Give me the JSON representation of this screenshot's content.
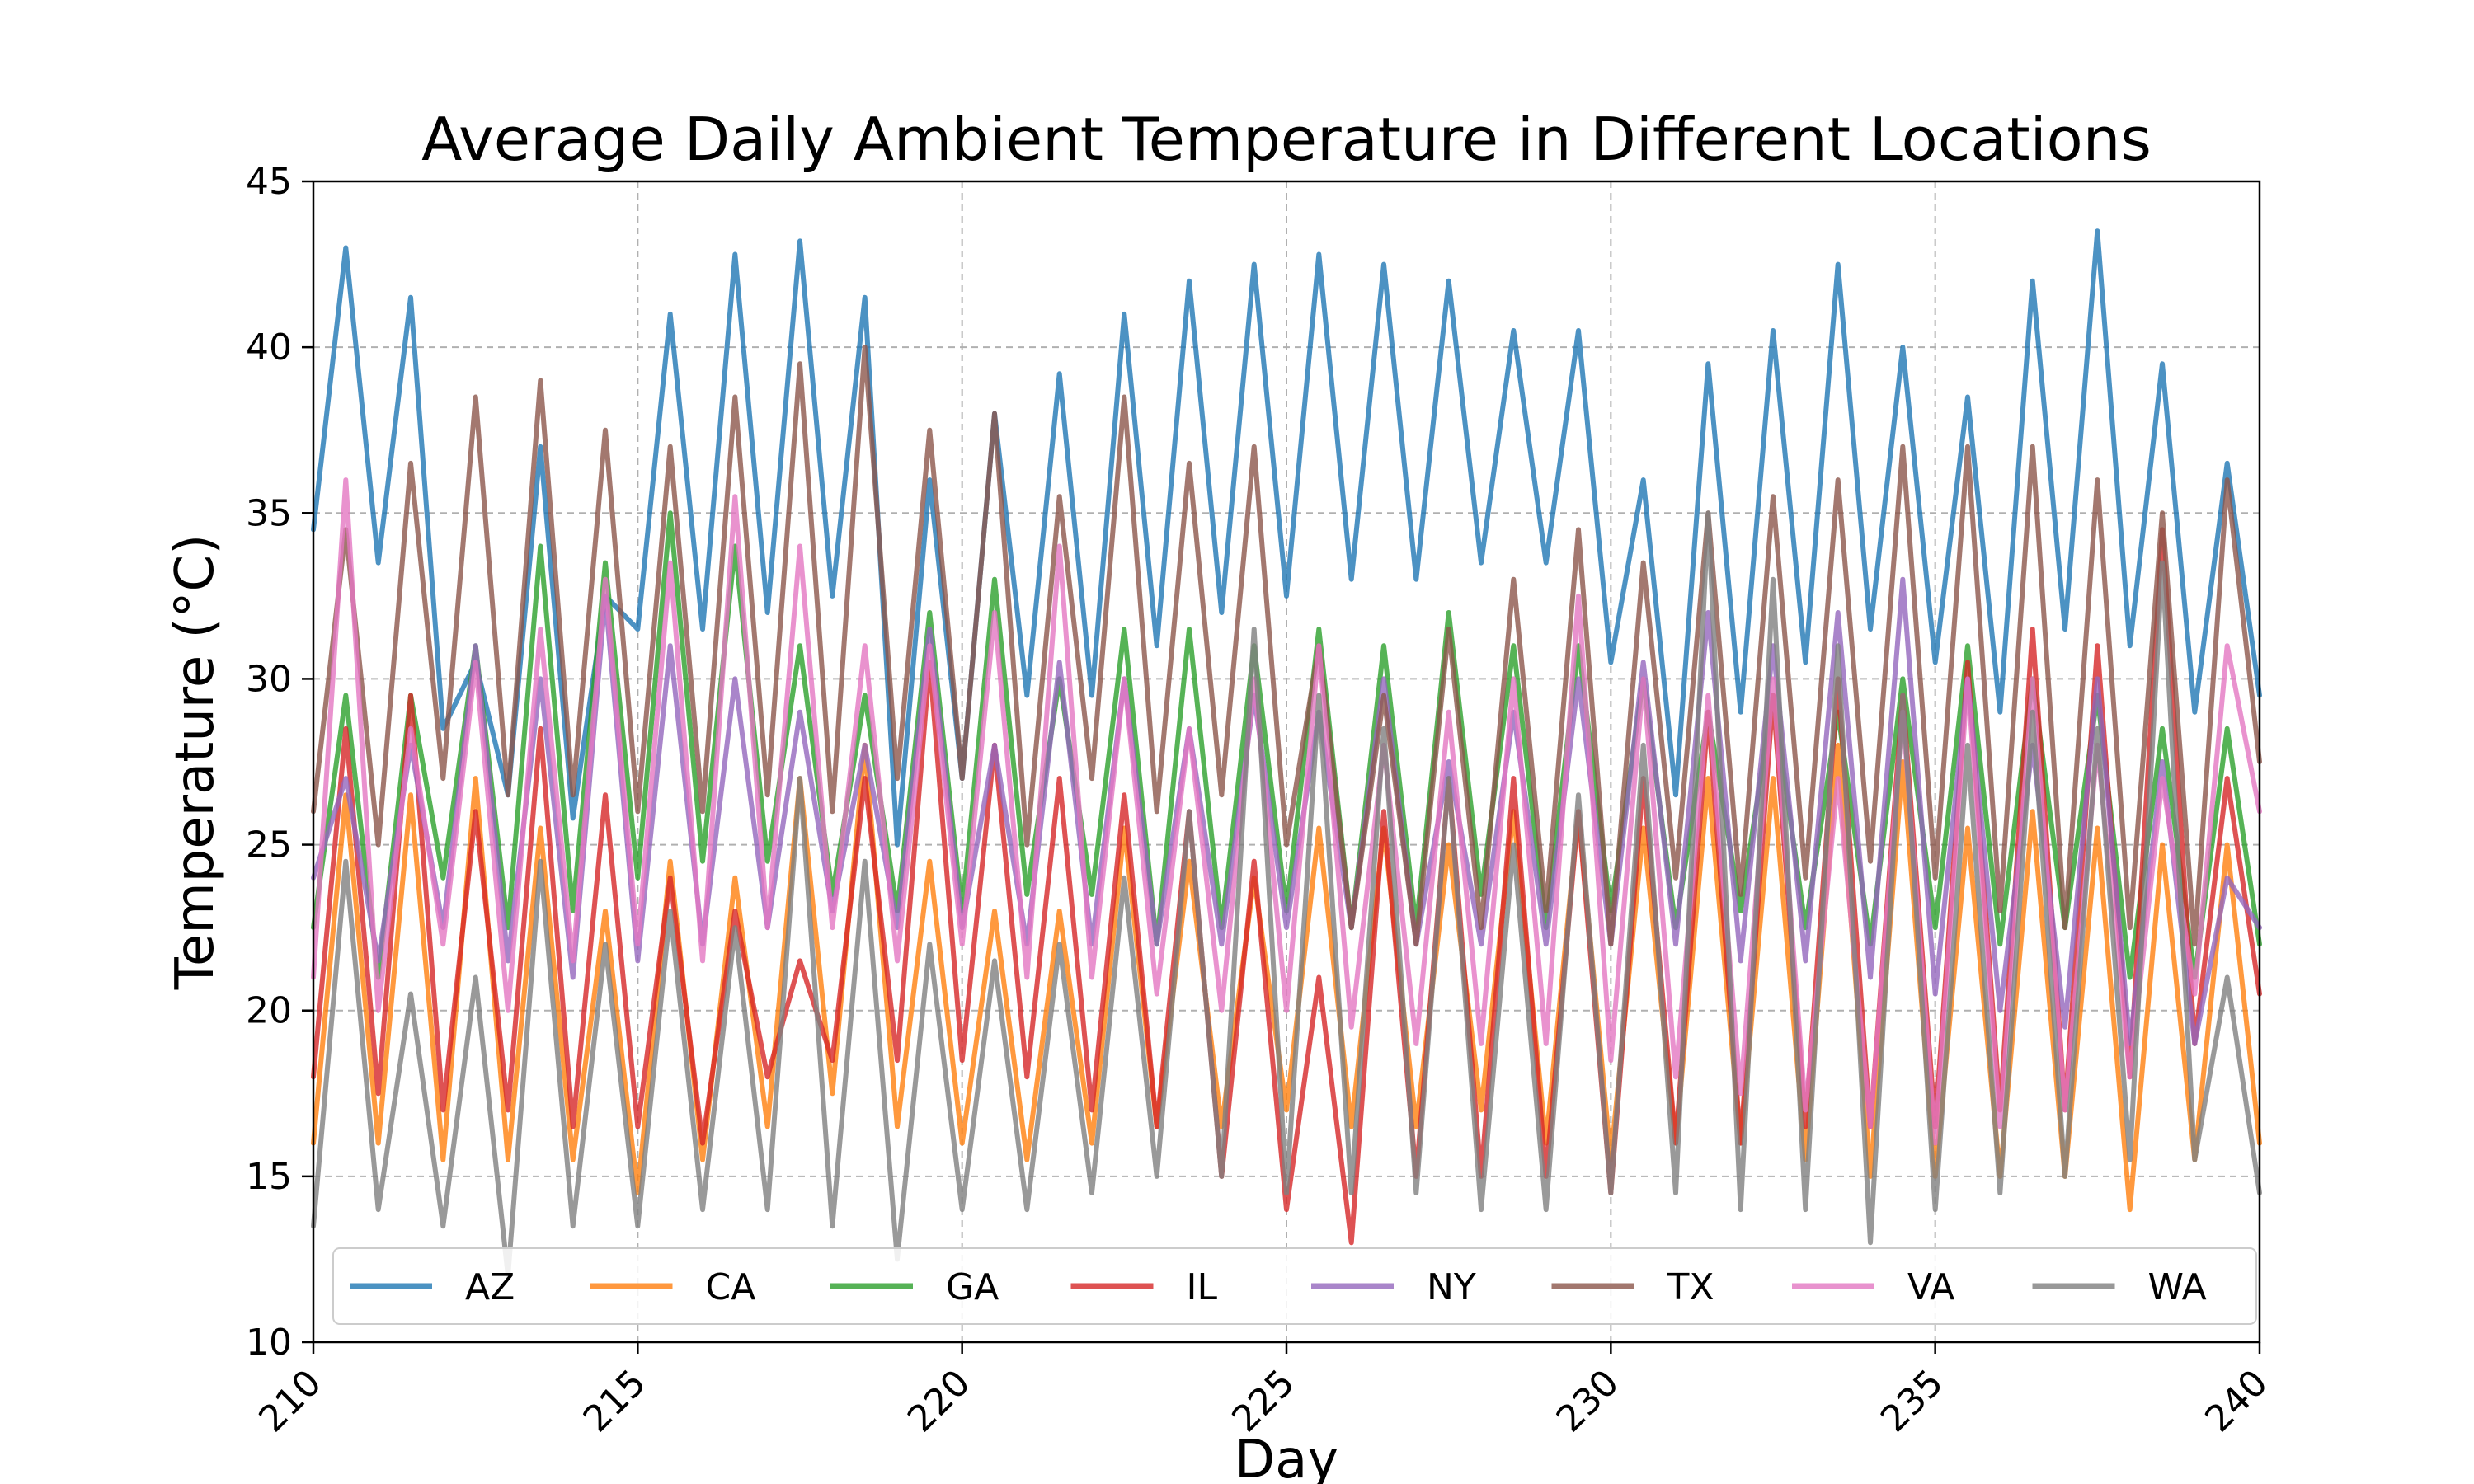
{
  "chart_data": {
    "type": "line",
    "title": "Average Daily Ambient Temperature in Different Locations",
    "xlabel": "Day",
    "ylabel": "Temperature (°C)",
    "xlim": [
      210,
      240
    ],
    "ylim": [
      10,
      45
    ],
    "x_ticks": [
      210,
      215,
      220,
      225,
      230,
      235,
      240
    ],
    "y_ticks": [
      10,
      15,
      20,
      25,
      30,
      35,
      40,
      45
    ],
    "grid": true,
    "legend_placement": "lower center",
    "x_step": 0.5,
    "series": [
      {
        "name": "AZ",
        "color": "#1f77b4",
        "values": [
          34.5,
          43.0,
          33.5,
          41.5,
          28.5,
          30.5,
          26.5,
          37.0,
          25.8,
          32.5,
          31.5,
          41.0,
          31.5,
          42.8,
          32.0,
          43.2,
          32.5,
          41.5,
          25.0,
          36.0,
          27.0,
          38.0,
          29.5,
          39.2,
          29.5,
          41.0,
          31.0,
          42.0,
          32.0,
          42.5,
          32.5,
          42.8,
          33.0,
          42.5,
          33.0,
          42.0,
          33.5,
          40.5,
          33.5,
          40.5,
          30.5,
          36.0,
          26.5,
          39.5,
          29.0,
          40.5,
          30.5,
          42.5,
          31.5,
          40.0,
          30.5,
          38.5,
          29.0,
          42.0,
          31.5,
          43.5,
          31.0,
          39.5,
          29.0,
          36.5,
          29.5
        ]
      },
      {
        "name": "CA",
        "color": "#ff7f0e",
        "values": [
          16.0,
          26.5,
          16.0,
          26.5,
          15.5,
          27.0,
          15.5,
          25.5,
          15.5,
          23.0,
          14.5,
          24.5,
          15.5,
          24.0,
          16.5,
          27.0,
          17.5,
          28.0,
          16.5,
          24.5,
          16.0,
          23.0,
          15.5,
          23.0,
          16.0,
          25.5,
          16.5,
          24.5,
          16.5,
          24.0,
          17.0,
          25.5,
          16.5,
          25.5,
          16.5,
          25.0,
          17.0,
          26.0,
          16.0,
          26.0,
          15.5,
          25.5,
          16.0,
          27.0,
          16.0,
          27.0,
          15.5,
          28.0,
          15.0,
          27.5,
          15.0,
          25.5,
          15.0,
          26.0,
          15.0,
          25.5,
          14.0,
          25.0,
          15.5,
          25.0,
          16.0
        ]
      },
      {
        "name": "GA",
        "color": "#2ca02c",
        "values": [
          22.5,
          29.5,
          21.0,
          29.5,
          24.0,
          31.0,
          22.5,
          34.0,
          23.0,
          33.5,
          24.0,
          35.0,
          24.5,
          34.0,
          24.5,
          31.0,
          23.5,
          29.5,
          23.0,
          32.0,
          23.0,
          33.0,
          23.5,
          30.0,
          23.5,
          31.5,
          22.0,
          31.5,
          22.5,
          31.0,
          23.0,
          31.5,
          22.5,
          31.0,
          22.5,
          32.0,
          23.5,
          31.0,
          22.5,
          31.0,
          23.0,
          30.0,
          22.5,
          29.0,
          23.0,
          29.5,
          22.5,
          29.0,
          22.0,
          30.0,
          22.5,
          31.0,
          22.0,
          30.0,
          22.5,
          29.5,
          21.0,
          28.5,
          21.0,
          28.5,
          22.0
        ]
      },
      {
        "name": "IL",
        "color": "#d62728",
        "values": [
          18.0,
          28.5,
          17.5,
          29.5,
          17.0,
          26.0,
          17.0,
          28.5,
          16.5,
          26.5,
          16.5,
          24.0,
          16.0,
          23.0,
          18.0,
          21.5,
          18.5,
          27.0,
          18.5,
          30.5,
          18.5,
          28.0,
          18.0,
          27.0,
          17.0,
          26.5,
          16.5,
          26.0,
          15.0,
          24.5,
          14.0,
          21.0,
          13.0,
          26.0,
          15.0,
          27.0,
          15.0,
          27.0,
          15.0,
          26.0,
          14.5,
          27.0,
          16.0,
          29.0,
          16.0,
          29.5,
          16.5,
          30.0,
          16.5,
          29.5,
          16.5,
          30.5,
          17.0,
          31.5,
          17.0,
          31.0,
          18.0,
          34.5,
          19.0,
          27.0,
          20.5
        ]
      },
      {
        "name": "NY",
        "color": "#9467bd",
        "values": [
          24.0,
          27.0,
          21.5,
          28.0,
          22.5,
          31.0,
          21.5,
          30.0,
          21.0,
          32.5,
          21.5,
          31.0,
          22.0,
          30.0,
          22.5,
          29.0,
          23.0,
          28.0,
          22.5,
          31.5,
          22.5,
          28.0,
          22.0,
          30.5,
          22.0,
          30.0,
          22.0,
          28.5,
          22.0,
          29.5,
          22.5,
          29.0,
          22.5,
          30.0,
          22.0,
          27.5,
          22.0,
          29.0,
          22.0,
          30.0,
          22.0,
          30.5,
          22.0,
          32.0,
          21.5,
          31.0,
          21.5,
          32.0,
          21.0,
          33.0,
          20.5,
          30.0,
          20.0,
          28.0,
          19.5,
          30.0,
          19.0,
          27.5,
          19.0,
          24.0,
          22.5
        ]
      },
      {
        "name": "TX",
        "color": "#8c564b",
        "values": [
          26.0,
          34.5,
          25.0,
          36.5,
          27.0,
          38.5,
          26.5,
          39.0,
          26.5,
          37.5,
          26.0,
          37.0,
          26.0,
          38.5,
          26.5,
          39.5,
          26.0,
          40.0,
          27.0,
          37.5,
          27.0,
          38.0,
          25.0,
          35.5,
          27.0,
          38.5,
          26.0,
          36.5,
          26.5,
          37.0,
          25.0,
          31.0,
          22.5,
          29.5,
          22.0,
          31.5,
          22.5,
          33.0,
          23.0,
          34.5,
          22.0,
          33.5,
          24.0,
          35.0,
          23.5,
          35.5,
          24.0,
          36.0,
          24.5,
          37.0,
          24.0,
          37.0,
          23.0,
          37.0,
          22.5,
          36.0,
          22.5,
          35.0,
          22.0,
          36.0,
          27.5
        ]
      },
      {
        "name": "VA",
        "color": "#e377c2",
        "values": [
          21.0,
          36.0,
          20.0,
          28.5,
          22.0,
          30.5,
          20.0,
          31.5,
          21.5,
          33.0,
          22.0,
          33.5,
          21.5,
          35.5,
          22.5,
          34.0,
          22.5,
          31.0,
          21.5,
          31.0,
          22.0,
          32.0,
          21.0,
          34.0,
          21.0,
          30.0,
          20.5,
          28.5,
          20.0,
          30.0,
          20.0,
          31.0,
          19.5,
          28.0,
          19.0,
          29.0,
          19.0,
          30.0,
          19.0,
          32.5,
          18.5,
          30.0,
          18.0,
          29.5,
          17.5,
          30.0,
          17.0,
          27.0,
          16.5,
          29.0,
          16.0,
          30.0,
          16.5,
          30.0,
          17.0,
          28.0,
          18.0,
          27.0,
          20.5,
          31.0,
          26.0
        ]
      },
      {
        "name": "WA",
        "color": "#7f7f7f",
        "values": [
          13.5,
          24.5,
          14.0,
          20.5,
          13.5,
          21.0,
          12.0,
          24.5,
          13.5,
          22.0,
          13.5,
          23.0,
          14.0,
          22.5,
          14.0,
          27.0,
          13.5,
          24.5,
          12.5,
          22.0,
          14.0,
          21.5,
          14.0,
          22.0,
          14.5,
          24.0,
          15.0,
          26.0,
          15.0,
          31.5,
          14.5,
          29.5,
          14.5,
          28.5,
          14.5,
          27.0,
          14.0,
          25.0,
          14.0,
          26.5,
          14.5,
          28.0,
          14.5,
          35.0,
          14.0,
          33.0,
          14.0,
          31.0,
          13.0,
          29.5,
          14.0,
          28.0,
          14.5,
          29.0,
          15.0,
          28.5,
          15.5,
          33.5,
          15.5,
          21.0,
          14.5
        ]
      }
    ]
  }
}
